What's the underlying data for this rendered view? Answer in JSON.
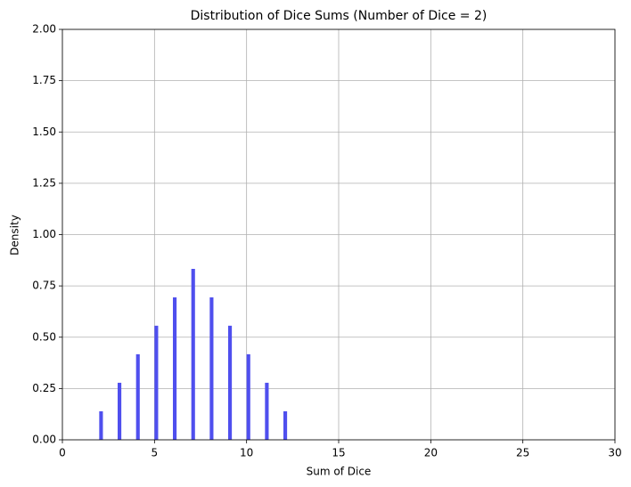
{
  "chart_data": {
    "type": "bar",
    "title": "Distribution of Dice Sums (Number of Dice = 2)",
    "x_label": "Sum of Dice",
    "y_label": "Density",
    "x": [
      2,
      3,
      4,
      5,
      6,
      7,
      8,
      9,
      10,
      11,
      12
    ],
    "values": [
      0.139,
      0.278,
      0.417,
      0.556,
      0.694,
      0.833,
      0.694,
      0.556,
      0.417,
      0.278,
      0.139
    ],
    "color": "#4f4fee",
    "xlim": [
      0,
      30
    ],
    "xticks": [
      0,
      5,
      10,
      15,
      20,
      25,
      30
    ],
    "ylim": [
      0,
      2
    ],
    "yticks": [
      {
        "value": 0,
        "label": "0.00"
      },
      {
        "value": 0.25,
        "label": "0.25"
      },
      {
        "value": 0.5,
        "label": "0.50"
      },
      {
        "value": 0.75,
        "label": "0.75"
      },
      {
        "value": 1,
        "label": "1.00"
      },
      {
        "value": 1.25,
        "label": "1.25"
      },
      {
        "value": 1.5,
        "label": "1.50"
      },
      {
        "value": 1.75,
        "label": "1.75"
      },
      {
        "value": 2,
        "label": "2.00"
      }
    ],
    "grid": true
  }
}
